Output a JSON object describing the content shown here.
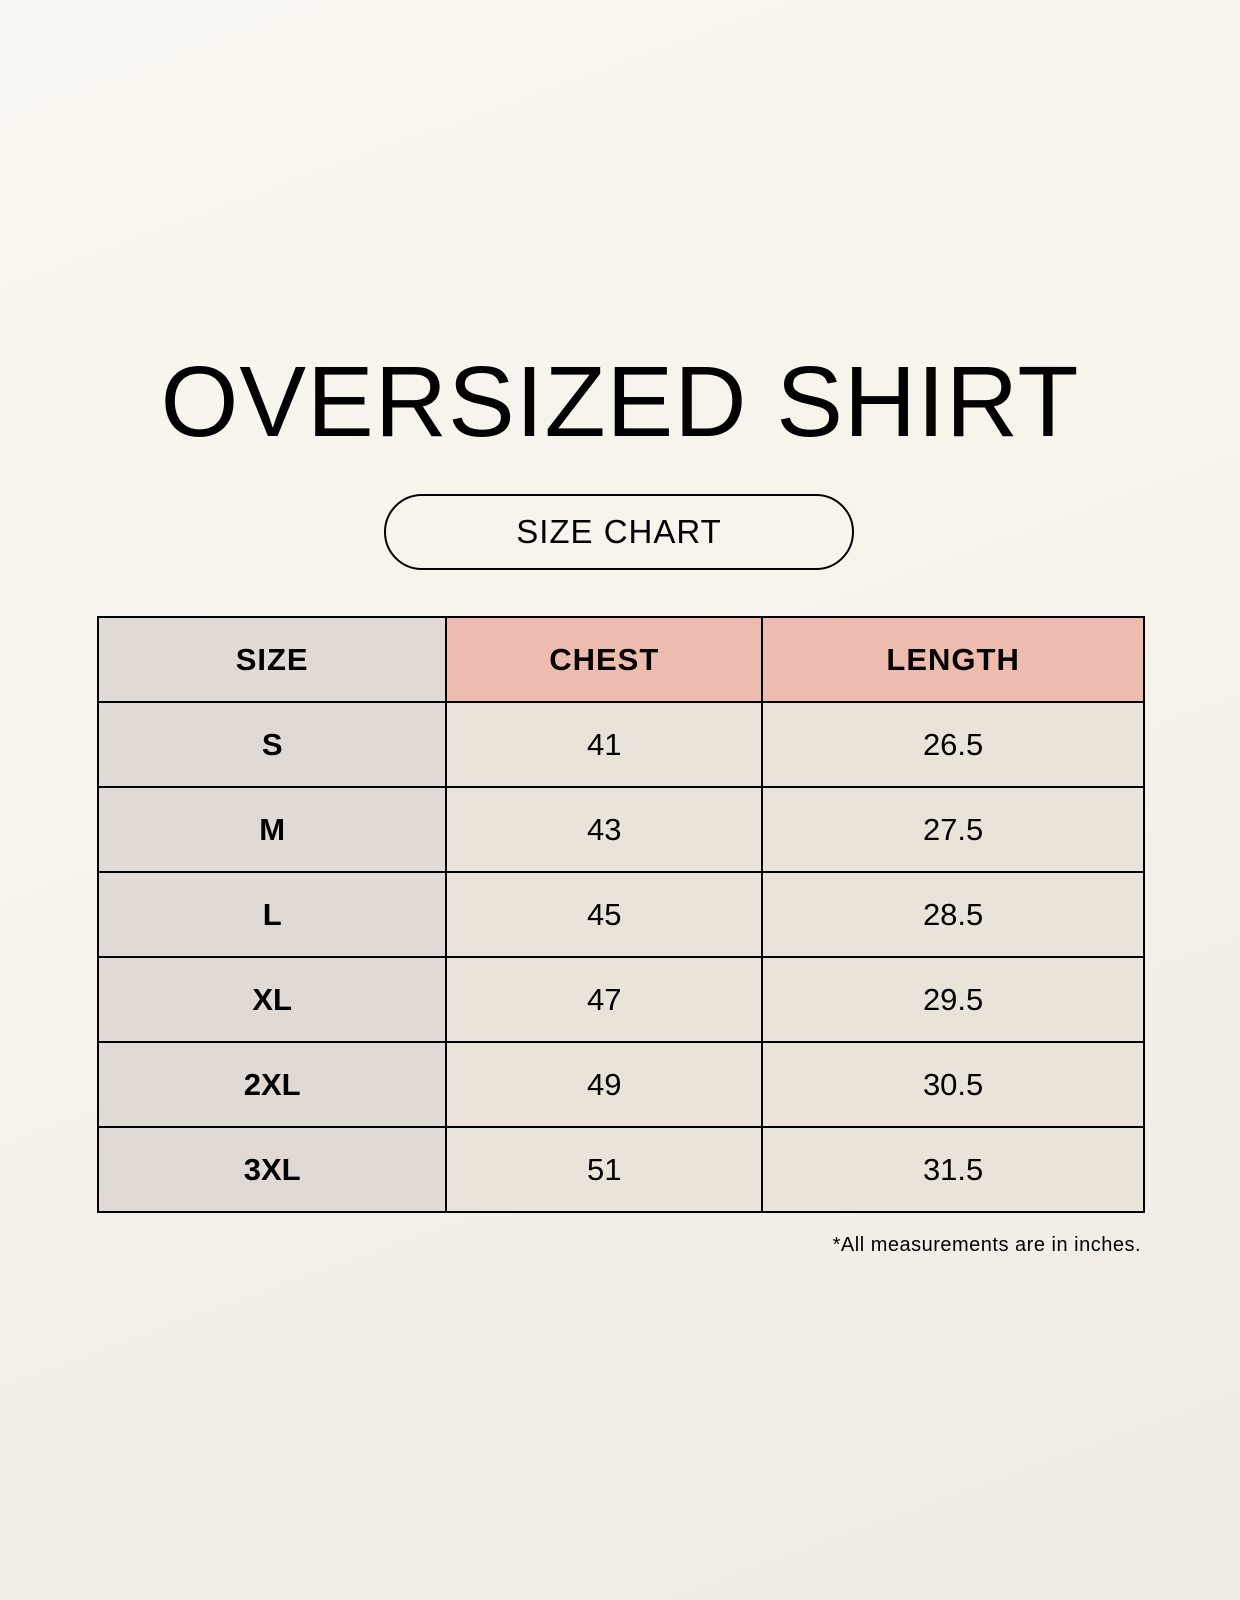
{
  "title": "OVERSIZED SHIRT",
  "subtitle": "SIZE CHART",
  "table": {
    "headers": [
      "SIZE",
      "CHEST",
      "LENGTH"
    ],
    "rows": [
      [
        "S",
        "41",
        "26.5"
      ],
      [
        "M",
        "43",
        "27.5"
      ],
      [
        "L",
        "45",
        "28.5"
      ],
      [
        "XL",
        "47",
        "29.5"
      ],
      [
        "2XL",
        "49",
        "30.5"
      ],
      [
        "3XL",
        "51",
        "31.5"
      ]
    ]
  },
  "note": "*All measurements are in inches.",
  "colors": {
    "header_accent": "#edbcae",
    "size_column": "#e0d9d4",
    "cells": "#eae3d9"
  }
}
